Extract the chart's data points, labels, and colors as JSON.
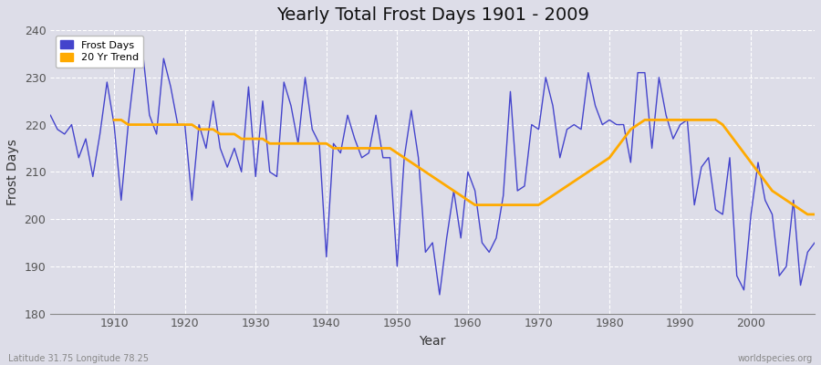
{
  "title": "Yearly Total Frost Days 1901 - 2009",
  "xlabel": "Year",
  "ylabel": "Frost Days",
  "footnote_left": "Latitude 31.75 Longitude 78.25",
  "footnote_right": "worldspecies.org",
  "bg_color": "#dddde8",
  "bg_color_bottom": "#c8c8d8",
  "grid_color": "#ffffff",
  "line_color": "#4444cc",
  "trend_color": "#ffaa00",
  "ylim": [
    180,
    240
  ],
  "xlim": [
    1901,
    2009
  ],
  "years": [
    1901,
    1902,
    1903,
    1904,
    1905,
    1906,
    1907,
    1908,
    1909,
    1910,
    1911,
    1912,
    1913,
    1914,
    1915,
    1916,
    1917,
    1918,
    1919,
    1920,
    1921,
    1922,
    1923,
    1924,
    1925,
    1926,
    1927,
    1928,
    1929,
    1930,
    1931,
    1932,
    1933,
    1934,
    1935,
    1936,
    1937,
    1938,
    1939,
    1940,
    1941,
    1942,
    1943,
    1944,
    1945,
    1946,
    1947,
    1948,
    1949,
    1950,
    1951,
    1952,
    1953,
    1954,
    1955,
    1956,
    1957,
    1958,
    1959,
    1960,
    1961,
    1962,
    1963,
    1964,
    1965,
    1966,
    1967,
    1968,
    1969,
    1970,
    1971,
    1972,
    1973,
    1974,
    1975,
    1976,
    1977,
    1978,
    1979,
    1980,
    1981,
    1982,
    1983,
    1984,
    1985,
    1986,
    1987,
    1988,
    1989,
    1990,
    1991,
    1992,
    1993,
    1994,
    1995,
    1996,
    1997,
    1998,
    1999,
    2000,
    2001,
    2002,
    2003,
    2004,
    2005,
    2006,
    2007,
    2008,
    2009
  ],
  "frost_days": [
    222,
    219,
    218,
    220,
    213,
    217,
    209,
    218,
    229,
    220,
    204,
    220,
    233,
    236,
    222,
    218,
    234,
    228,
    220,
    220,
    204,
    220,
    215,
    225,
    215,
    211,
    215,
    210,
    228,
    209,
    225,
    210,
    209,
    229,
    224,
    216,
    230,
    219,
    216,
    192,
    216,
    214,
    222,
    217,
    213,
    214,
    222,
    213,
    213,
    190,
    213,
    223,
    213,
    193,
    195,
    184,
    196,
    206,
    196,
    210,
    206,
    195,
    193,
    196,
    205,
    227,
    206,
    207,
    220,
    219,
    230,
    224,
    213,
    219,
    220,
    219,
    231,
    224,
    220,
    221,
    220,
    220,
    212,
    231,
    231,
    215,
    230,
    222,
    217,
    220,
    221,
    203,
    211,
    213,
    202,
    201,
    213,
    188,
    185,
    201,
    212,
    204,
    201,
    188,
    190,
    204,
    186,
    193,
    195
  ],
  "trend_years": [
    1910,
    1911,
    1912,
    1913,
    1914,
    1915,
    1916,
    1917,
    1918,
    1919,
    1920,
    1921,
    1922,
    1923,
    1924,
    1925,
    1926,
    1927,
    1928,
    1929,
    1930,
    1931,
    1932,
    1933,
    1934,
    1935,
    1936,
    1937,
    1938,
    1939,
    1940,
    1941,
    1942,
    1943,
    1944,
    1945,
    1946,
    1947,
    1948,
    1949,
    1950,
    1951,
    1952,
    1953,
    1954,
    1955,
    1956,
    1957,
    1958,
    1959,
    1960,
    1961,
    1962,
    1963,
    1964,
    1965,
    1966,
    1967,
    1968,
    1969,
    1970,
    1971,
    1972,
    1973,
    1974,
    1975,
    1976,
    1977,
    1978,
    1979,
    1980,
    1981,
    1982,
    1983,
    1984,
    1985,
    1986,
    1987,
    1988,
    1989,
    1990,
    1991,
    1992,
    1993,
    1994,
    1995,
    1996,
    1997,
    1998,
    1999,
    2000,
    2001,
    2002,
    2003,
    2004,
    2005,
    2006,
    2007,
    2008,
    2009
  ],
  "trend_values": [
    221,
    221,
    220,
    220,
    220,
    220,
    220,
    220,
    220,
    220,
    220,
    220,
    219,
    219,
    219,
    218,
    218,
    218,
    217,
    217,
    217,
    217,
    216,
    216,
    216,
    216,
    216,
    216,
    216,
    216,
    216,
    215,
    215,
    215,
    215,
    215,
    215,
    215,
    215,
    215,
    214,
    213,
    212,
    211,
    210,
    209,
    208,
    207,
    206,
    205,
    204,
    203,
    203,
    203,
    203,
    203,
    203,
    203,
    203,
    203,
    203,
    204,
    205,
    206,
    207,
    208,
    209,
    210,
    211,
    212,
    213,
    215,
    217,
    219,
    220,
    221,
    221,
    221,
    221,
    221,
    221,
    221,
    221,
    221,
    221,
    221,
    220,
    218,
    216,
    214,
    212,
    210,
    208,
    206,
    205,
    204,
    203,
    202,
    201,
    201
  ]
}
